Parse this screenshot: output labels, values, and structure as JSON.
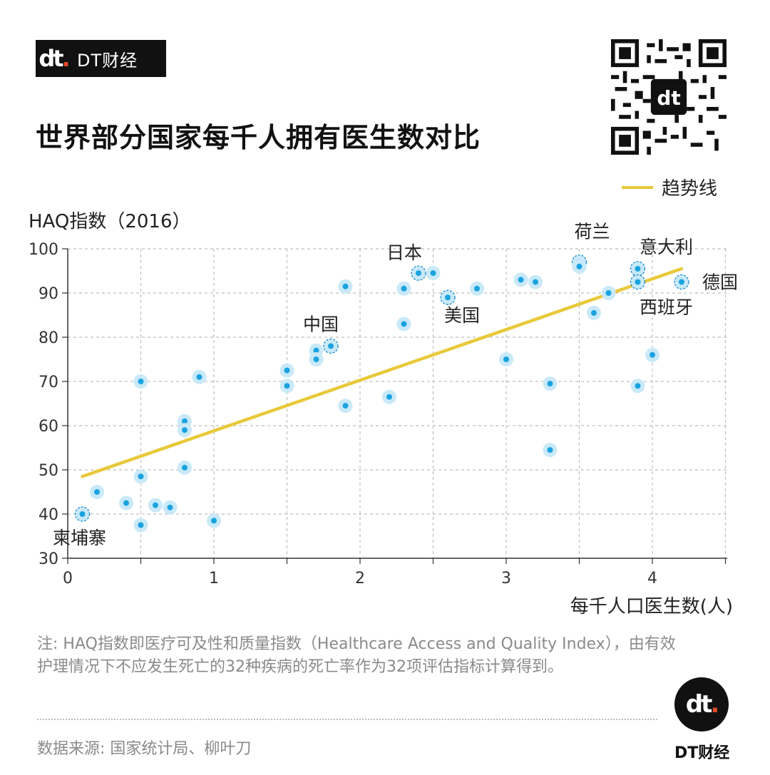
{
  "brand": {
    "mark": "dt",
    "name": "DT财经"
  },
  "title": "世界部分国家每千人拥有医生数对比",
  "legend": {
    "label": "趋势线",
    "color": "#e8c93a"
  },
  "note": "注: HAQ指数即医疗可及性和质量指数（Healthcare Access and Quality Index），由有效护理情况下不应发生死亡的32种疾病的死亡率作为32项评估指标计算得到。",
  "source": "数据来源: 国家统计局、柳叶刀",
  "footer_brand": "DT财经",
  "colors": {
    "point": "#1aa3e0",
    "halo": "#c9e9f8",
    "trend": "#e8c93a",
    "grid": "#bdbdbd"
  },
  "chart_data": {
    "type": "scatter",
    "xlabel": "每千人口医生数(人)",
    "ylabel": "HAQ指数（2016）",
    "xlim": [
      0,
      4.5
    ],
    "ylim": [
      30,
      100
    ],
    "xticks": [
      0,
      1,
      2,
      3,
      4
    ],
    "yticks": [
      30,
      40,
      50,
      60,
      70,
      80,
      90,
      100
    ],
    "grid": true,
    "legend_position": "top-right",
    "trendline": {
      "x": [
        0.1,
        4.2
      ],
      "y": [
        48.5,
        95.5
      ]
    },
    "points": [
      {
        "x": 0.1,
        "y": 40,
        "label": "柬埔寨"
      },
      {
        "x": 0.2,
        "y": 45
      },
      {
        "x": 0.4,
        "y": 42.5
      },
      {
        "x": 0.5,
        "y": 37.5
      },
      {
        "x": 0.5,
        "y": 48.5
      },
      {
        "x": 0.5,
        "y": 70
      },
      {
        "x": 0.6,
        "y": 42
      },
      {
        "x": 0.7,
        "y": 41.5
      },
      {
        "x": 0.8,
        "y": 61
      },
      {
        "x": 0.8,
        "y": 59
      },
      {
        "x": 0.8,
        "y": 50.5
      },
      {
        "x": 0.9,
        "y": 71
      },
      {
        "x": 1.0,
        "y": 38.5
      },
      {
        "x": 1.5,
        "y": 72.5
      },
      {
        "x": 1.5,
        "y": 69
      },
      {
        "x": 1.7,
        "y": 77
      },
      {
        "x": 1.7,
        "y": 75
      },
      {
        "x": 1.8,
        "y": 78,
        "label": "中国"
      },
      {
        "x": 1.9,
        "y": 91.5
      },
      {
        "x": 1.9,
        "y": 64.5
      },
      {
        "x": 2.2,
        "y": 66.5
      },
      {
        "x": 2.3,
        "y": 91
      },
      {
        "x": 2.3,
        "y": 83
      },
      {
        "x": 2.4,
        "y": 94.5,
        "label": "日本"
      },
      {
        "x": 2.5,
        "y": 94.5
      },
      {
        "x": 2.6,
        "y": 89,
        "label": "美国"
      },
      {
        "x": 2.8,
        "y": 91
      },
      {
        "x": 3.0,
        "y": 75
      },
      {
        "x": 3.1,
        "y": 93
      },
      {
        "x": 3.2,
        "y": 92.5
      },
      {
        "x": 3.3,
        "y": 69.5
      },
      {
        "x": 3.3,
        "y": 54.5
      },
      {
        "x": 3.5,
        "y": 97,
        "label": "荷兰"
      },
      {
        "x": 3.5,
        "y": 96
      },
      {
        "x": 3.6,
        "y": 85.5
      },
      {
        "x": 3.7,
        "y": 90
      },
      {
        "x": 3.9,
        "y": 95.5,
        "label": "意大利"
      },
      {
        "x": 3.9,
        "y": 92.5,
        "label": "西班牙"
      },
      {
        "x": 3.9,
        "y": 69
      },
      {
        "x": 4.0,
        "y": 76
      },
      {
        "x": 4.2,
        "y": 92.5,
        "label": "德国"
      }
    ]
  }
}
